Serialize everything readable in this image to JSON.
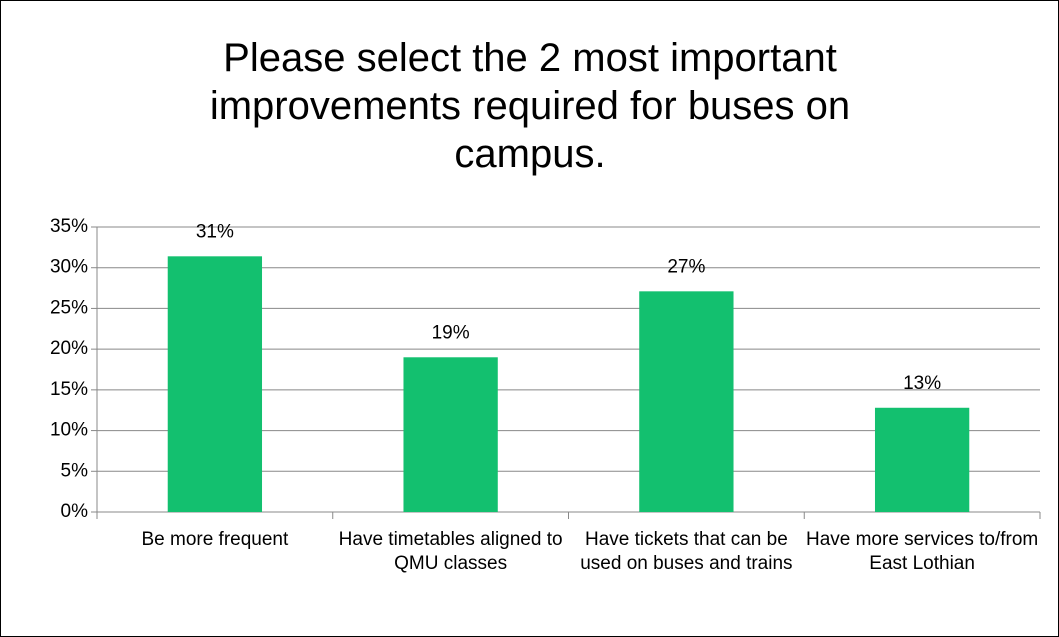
{
  "chart_data": {
    "type": "bar",
    "title": "Please select the 2 most important improvements required for buses on campus.",
    "categories": [
      "Be more frequent",
      "Have timetables aligned to QMU classes",
      "Have tickets that can be used on buses and trains",
      "Have more services to/from East Lothian"
    ],
    "values": [
      31.4,
      19.0,
      27.1,
      12.8
    ],
    "value_labels": [
      "31%",
      "19%",
      "27%",
      "13%"
    ],
    "color": "#13c06f",
    "ylim": [
      0,
      35
    ],
    "yticks": [
      {
        "value": 0,
        "label": "0%"
      },
      {
        "value": 5,
        "label": "5%"
      },
      {
        "value": 10,
        "label": "10%"
      },
      {
        "value": 15,
        "label": "15%"
      },
      {
        "value": 20,
        "label": "20%"
      },
      {
        "value": 25,
        "label": "25%"
      },
      {
        "value": 30,
        "label": "30%"
      },
      {
        "value": 35,
        "label": "35%"
      }
    ],
    "grid": true
  }
}
